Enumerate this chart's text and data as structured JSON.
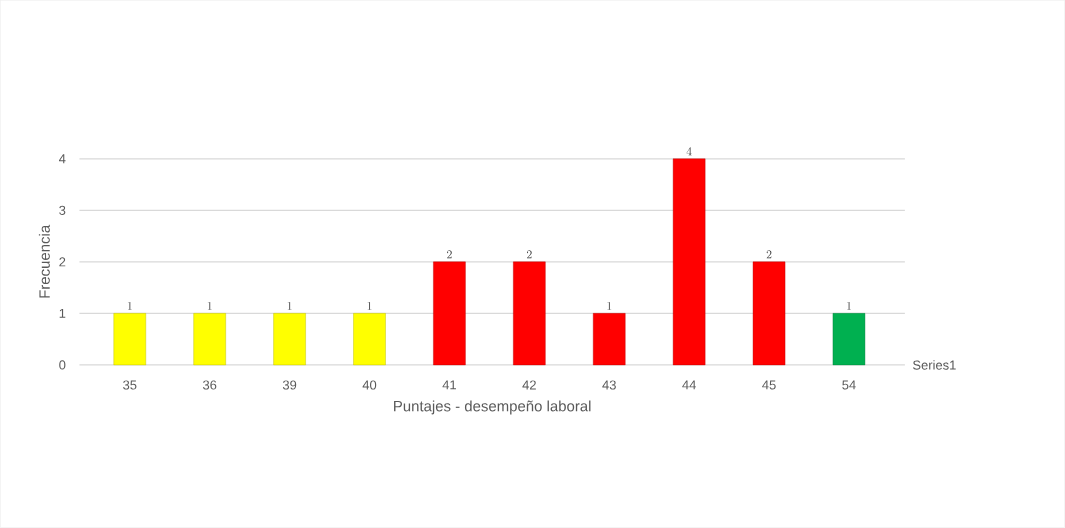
{
  "chart_data": {
    "type": "bar",
    "xlabel": "Puntajes - desempeño laboral",
    "ylabel": "Frecuencia",
    "categories": [
      "35",
      "36",
      "39",
      "40",
      "41",
      "42",
      "43",
      "44",
      "45",
      "54"
    ],
    "series": [
      {
        "name": "Series1",
        "values": [
          1,
          1,
          1,
          1,
          2,
          2,
          1,
          4,
          2,
          1
        ],
        "colors": [
          "#ffff00",
          "#ffff00",
          "#ffff00",
          "#ffff00",
          "#ff0000",
          "#ff0000",
          "#ff0000",
          "#ff0000",
          "#ff0000",
          "#00b050"
        ]
      }
    ],
    "ylim": [
      0,
      4
    ],
    "yticks": [
      0,
      1,
      2,
      3,
      4
    ],
    "grid": "y",
    "data_labels": true
  }
}
